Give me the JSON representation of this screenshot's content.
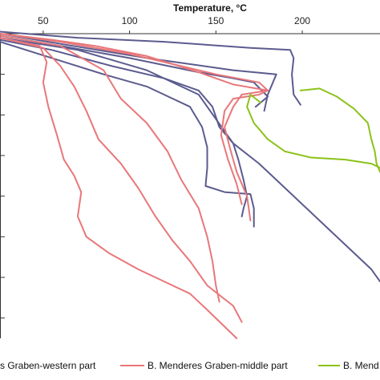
{
  "chart_data": {
    "type": "line",
    "title": "",
    "xlabel": "Temperature, °C",
    "ylabel": "",
    "x_axis_position": "top",
    "xlim": [
      25,
      245
    ],
    "ylim": [
      0,
      7.5
    ],
    "y_inverted": true,
    "x_ticks": [
      50,
      100,
      150,
      200
    ],
    "x_tick_labels": [
      "50",
      "100",
      "150",
      "200"
    ],
    "y_ticks": [
      1,
      2,
      3,
      4,
      5,
      6,
      7
    ],
    "grid": false,
    "legend_position": "bottom",
    "legend": [
      {
        "label": "s Graben-western part",
        "color": "#5b5b8f"
      },
      {
        "label": "B. Menderes Graben-middle part",
        "color": "#e8777a"
      },
      {
        "label": "B. Mend",
        "color": "#8cc21a"
      }
    ],
    "series": [
      {
        "group": "western",
        "color": "#5b5b8f",
        "values": [
          [
            25,
            -0.05
          ],
          [
            70,
            0.1
          ],
          [
            120,
            0.2
          ],
          [
            170,
            0.35
          ],
          [
            193,
            0.4
          ],
          [
            195,
            0.6
          ],
          [
            194,
            1.0
          ],
          [
            195,
            1.5
          ],
          [
            199,
            1.75
          ]
        ]
      },
      {
        "group": "western",
        "color": "#5b5b8f",
        "values": [
          [
            25,
            0.05
          ],
          [
            60,
            0.3
          ],
          [
            100,
            0.6
          ],
          [
            140,
            0.95
          ],
          [
            160,
            1.1
          ],
          [
            172,
            1.2
          ],
          [
            180,
            1.55
          ],
          [
            173,
            1.8
          ]
        ]
      },
      {
        "group": "western",
        "color": "#5b5b8f",
        "values": [
          [
            25,
            0.15
          ],
          [
            55,
            0.4
          ],
          [
            90,
            0.8
          ],
          [
            120,
            1.1
          ],
          [
            140,
            1.4
          ],
          [
            148,
            1.8
          ],
          [
            152,
            2.3
          ],
          [
            160,
            2.7
          ],
          [
            163,
            3.1
          ],
          [
            166,
            3.6
          ],
          [
            168,
            4.0
          ],
          [
            166,
            4.3
          ],
          [
            165,
            4.5
          ]
        ]
      },
      {
        "group": "western",
        "color": "#5b5b8f",
        "values": [
          [
            25,
            0.2
          ],
          [
            55,
            0.6
          ],
          [
            85,
            1.0
          ],
          [
            110,
            1.3
          ],
          [
            135,
            1.8
          ],
          [
            142,
            2.3
          ],
          [
            145,
            2.8
          ],
          [
            145,
            3.3
          ],
          [
            144,
            3.75
          ],
          [
            155,
            3.9
          ],
          [
            170,
            3.95
          ],
          [
            172,
            4.3
          ],
          [
            172,
            4.75
          ]
        ]
      },
      {
        "group": "western",
        "color": "#5b5b8f",
        "values": [
          [
            25,
            0.1
          ],
          [
            70,
            0.4
          ],
          [
            110,
            0.9
          ],
          [
            140,
            1.5
          ],
          [
            150,
            2.1
          ],
          [
            160,
            2.7
          ],
          [
            175,
            3.2
          ],
          [
            190,
            3.8
          ],
          [
            210,
            4.6
          ],
          [
            225,
            5.2
          ],
          [
            240,
            5.8
          ],
          [
            245,
            6.1
          ]
        ]
      },
      {
        "group": "western",
        "color": "#5b5b8f",
        "values": [
          [
            25,
            0.0
          ],
          [
            60,
            0.25
          ],
          [
            110,
            0.6
          ],
          [
            160,
            0.9
          ],
          [
            185,
            1.0
          ],
          [
            180,
            1.5
          ],
          [
            178,
            1.9
          ]
        ]
      },
      {
        "group": "middle",
        "color": "#e8777a",
        "values": [
          [
            25,
            0.0
          ],
          [
            60,
            0.2
          ],
          [
            100,
            0.5
          ],
          [
            130,
            0.8
          ],
          [
            150,
            1.0
          ],
          [
            175,
            1.2
          ],
          [
            180,
            1.4
          ],
          [
            165,
            1.5
          ],
          [
            160,
            1.8
          ],
          [
            155,
            2.3
          ],
          [
            158,
            2.8
          ],
          [
            162,
            3.4
          ],
          [
            168,
            4.0
          ],
          [
            170,
            4.6
          ]
        ]
      },
      {
        "group": "middle",
        "color": "#e8777a",
        "values": [
          [
            25,
            0.05
          ],
          [
            60,
            0.3
          ],
          [
            85,
            0.9
          ],
          [
            95,
            1.6
          ],
          [
            110,
            2.2
          ],
          [
            122,
            2.9
          ],
          [
            130,
            3.6
          ],
          [
            140,
            4.3
          ],
          [
            145,
            5.0
          ],
          [
            148,
            5.6
          ],
          [
            150,
            6.2
          ],
          [
            152,
            6.6
          ]
        ]
      },
      {
        "group": "middle",
        "color": "#e8777a",
        "values": [
          [
            25,
            0.1
          ],
          [
            50,
            0.35
          ],
          [
            60,
            0.8
          ],
          [
            68,
            1.3
          ],
          [
            75,
            1.9
          ],
          [
            82,
            2.6
          ],
          [
            95,
            3.2
          ],
          [
            105,
            3.8
          ],
          [
            115,
            4.5
          ],
          [
            125,
            5.1
          ],
          [
            135,
            5.6
          ],
          [
            145,
            6.2
          ],
          [
            160,
            6.7
          ],
          [
            165,
            7.1
          ]
        ]
      },
      {
        "group": "middle",
        "color": "#e8777a",
        "values": [
          [
            25,
            0.1
          ],
          [
            48,
            0.3
          ],
          [
            52,
            0.7
          ],
          [
            50,
            1.2
          ],
          [
            53,
            1.8
          ],
          [
            58,
            2.5
          ],
          [
            62,
            3.1
          ],
          [
            68,
            3.5
          ],
          [
            72,
            3.9
          ],
          [
            70,
            4.5
          ],
          [
            75,
            5.0
          ],
          [
            88,
            5.4
          ],
          [
            105,
            5.8
          ],
          [
            120,
            6.1
          ],
          [
            135,
            6.4
          ],
          [
            145,
            6.8
          ],
          [
            162,
            7.5
          ]
        ]
      },
      {
        "group": "middle",
        "color": "#e8777a",
        "values": [
          [
            25,
            0.0
          ],
          [
            55,
            0.15
          ],
          [
            80,
            0.3
          ],
          [
            110,
            0.55
          ],
          [
            140,
            0.95
          ],
          [
            160,
            1.25
          ],
          [
            180,
            1.4
          ],
          [
            175,
            1.5
          ],
          [
            160,
            1.6
          ],
          [
            155,
            1.9
          ],
          [
            153,
            2.5
          ],
          [
            157,
            3.1
          ],
          [
            162,
            3.7
          ],
          [
            165,
            4.2
          ]
        ]
      },
      {
        "group": "eastern",
        "color": "#8cc21a",
        "values": [
          [
            176,
            1.7
          ],
          [
            170,
            1.5
          ],
          [
            168,
            1.8
          ],
          [
            172,
            2.2
          ],
          [
            180,
            2.6
          ],
          [
            190,
            2.9
          ],
          [
            205,
            3.05
          ],
          [
            225,
            3.1
          ],
          [
            240,
            3.2
          ],
          [
            245,
            3.3
          ]
        ]
      },
      {
        "group": "eastern",
        "color": "#8cc21a",
        "values": [
          [
            199,
            1.4
          ],
          [
            210,
            1.35
          ],
          [
            220,
            1.55
          ],
          [
            230,
            1.85
          ],
          [
            238,
            2.2
          ],
          [
            240,
            2.6
          ],
          [
            242,
            2.9
          ],
          [
            243,
            3.2
          ],
          [
            245,
            3.4
          ]
        ]
      }
    ]
  }
}
